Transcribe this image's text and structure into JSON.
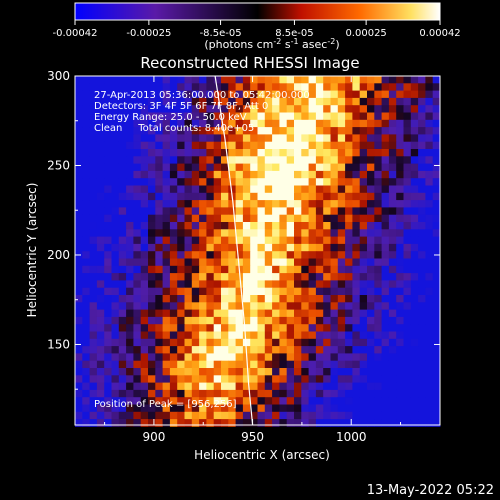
{
  "colorbar": {
    "tick_labels": [
      "-0.00042",
      "-0.00025",
      "-8.5e-05",
      "8.5e-05",
      "0.00025",
      "0.00042"
    ],
    "tick_values": [
      -0.00042,
      -0.00025,
      -8.5e-05,
      8.5e-05,
      0.00025,
      0.00042
    ],
    "range": [
      -0.00042,
      0.00042
    ],
    "units_main": "(photons cm",
    "units_sup1": "-2",
    "units_mid": " s",
    "units_sup2": "-1",
    "units_end": " asec",
    "units_sup3": "-2",
    "units_close": ")",
    "colors": [
      "#0000ff",
      "#5a1aa8",
      "#000000",
      "#d21400",
      "#ff7800",
      "#ffff96",
      "#ffffff"
    ]
  },
  "chart_data": {
    "type": "heatmap",
    "title": "Reconstructed RHESSI Image",
    "xlabel": "Heliocentric X (arcsec)",
    "ylabel": "Heliocentric Y (arcsec)",
    "xlim": [
      860,
      1045
    ],
    "ylim": [
      105,
      300
    ],
    "xticks": [
      900,
      950,
      1000
    ],
    "yticks": [
      150,
      200,
      250,
      300
    ],
    "xtick_labels": [
      "900",
      "950",
      "1000"
    ],
    "ytick_labels": [
      "150",
      "200",
      "250",
      "300"
    ],
    "annotations": [
      "27-Apr-2013 05:36:00.000 to 05:42:00.000",
      "Detectors: 3F 4F 5F 6F 7F 8F, Att 0",
      "Energy Range: 25.0 - 50.0 keV",
      "Clean     Total counts: 8.40e+05"
    ],
    "peak_label": "Position of Peak = [956,256]",
    "peak": [
      956,
      256
    ],
    "limb_curve": {
      "x": [
        931,
        936,
        940,
        943,
        946,
        948,
        950
      ],
      "y": [
        300,
        265,
        230,
        195,
        160,
        128,
        105
      ]
    }
  },
  "footer": {
    "date": "13-May-2022 05:22"
  }
}
